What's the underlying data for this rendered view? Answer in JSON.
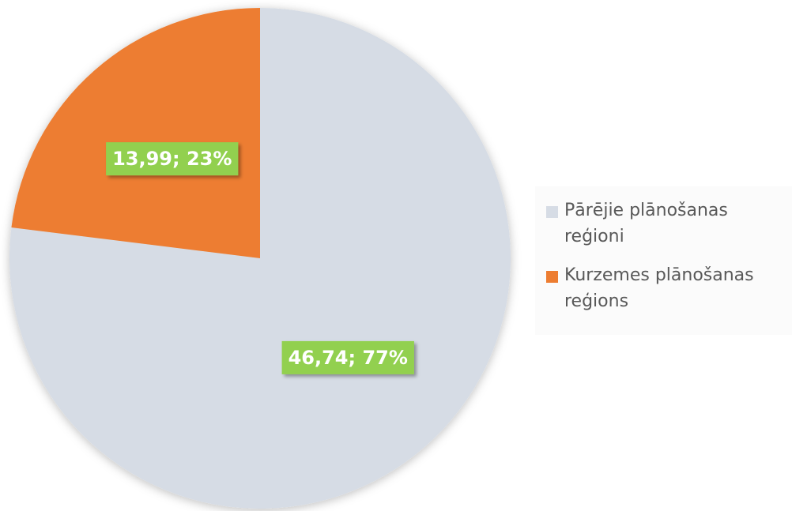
{
  "chart_data": {
    "type": "pie",
    "categories": [
      "Pārējie plānošanas reģioni",
      "Kurzemes plānošanas reģions"
    ],
    "values": [
      46.74,
      13.99
    ],
    "value_labels": [
      "46,74; 77%",
      "13,99; 23%"
    ],
    "colors": [
      "#d6dce5",
      "#ed7d31"
    ],
    "label_color": "#92d050",
    "legend": "right"
  }
}
